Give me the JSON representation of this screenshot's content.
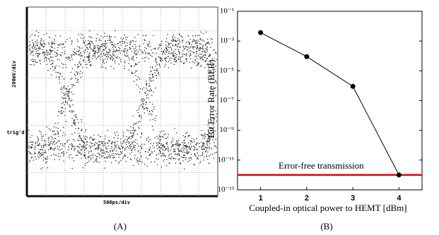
{
  "chart_data": [
    {
      "type": "eye",
      "x_label": "500ps/div",
      "y_label": "200mV/div",
      "trigger_label": "trig'd",
      "caption": "(A)"
    },
    {
      "type": "line",
      "caption": "(B)",
      "x_label": "Coupled-in optical power to HEMT [dBm]",
      "y_label": "Bit Error Rate (BER)",
      "x": [
        1,
        2,
        3,
        4
      ],
      "values": [
        0.0037,
        9e-05,
        9e-07,
        1e-12
      ],
      "color": "#000000",
      "xlim": [
        0.5,
        4.5
      ],
      "xticks": [
        1,
        2,
        3,
        4
      ],
      "ylim": [
        1e-13,
        0.1
      ],
      "log_y": true,
      "yticks": [
        {
          "value": 0.1,
          "label": "10⁻¹"
        },
        {
          "value": 0.001,
          "label": "10⁻³"
        },
        {
          "value": 1e-05,
          "label": "10⁻⁵"
        },
        {
          "value": 1e-07,
          "label": "10⁻⁷"
        },
        {
          "value": 1e-09,
          "label": "10⁻⁹"
        },
        {
          "value": 1e-11,
          "label": "10⁻¹¹"
        },
        {
          "value": 1e-13,
          "label": "10⁻¹³"
        }
      ],
      "threshold": {
        "value": 1e-12,
        "label": "Error-free transmission",
        "color": "#e00000"
      }
    }
  ]
}
